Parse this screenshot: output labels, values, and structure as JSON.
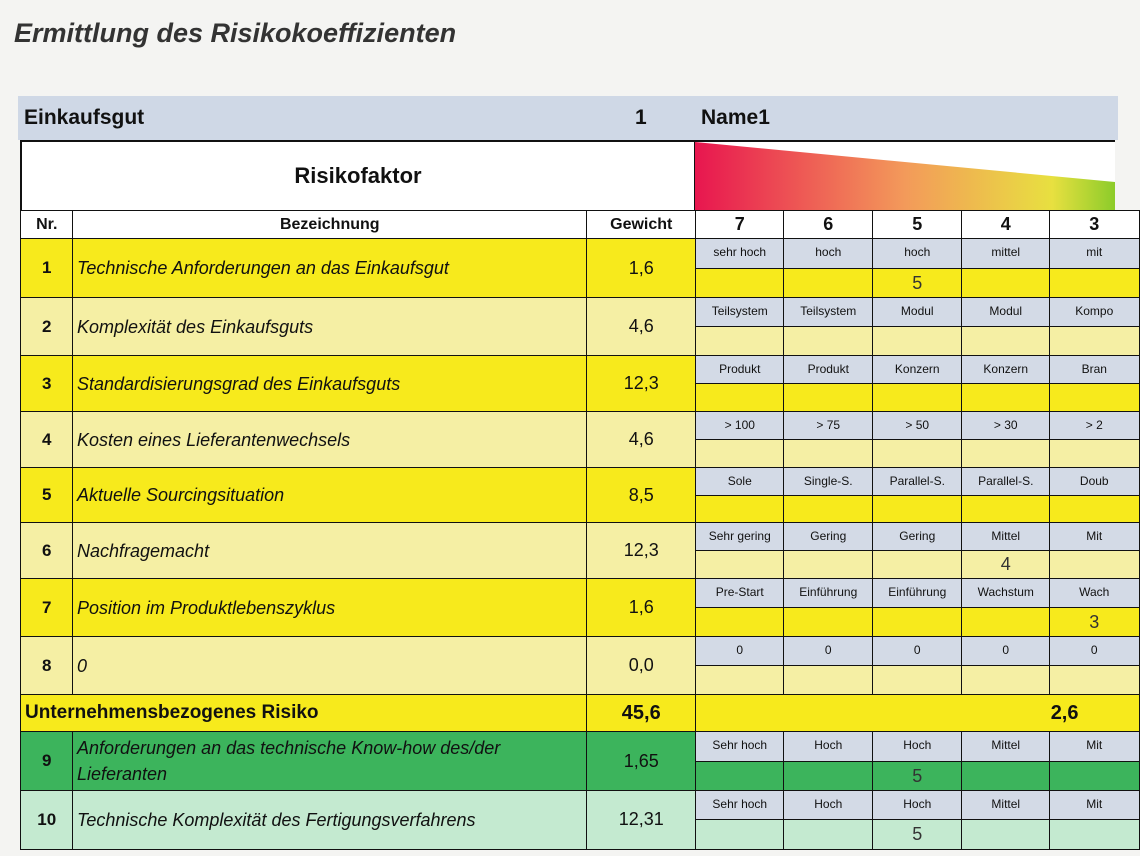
{
  "title": "Ermittlung des Risikokoeffizienten",
  "header": {
    "label": "Einkaufsgut",
    "number": "1",
    "name": "Name1"
  },
  "section_title": "Risikofaktor",
  "columns": {
    "nr": "Nr.",
    "bezeichnung": "Bezeichnung",
    "gewicht": "Gewicht",
    "scores": [
      "7",
      "6",
      "5",
      "4",
      "3"
    ]
  },
  "colors": {
    "bright_yellow": "#f7ea1c",
    "pale_yellow": "#f5efa4",
    "green": "#3cb45c",
    "pale_green": "#c4ead0",
    "label_bg": "#d3dae6"
  },
  "rows": [
    {
      "nr": "1",
      "name": "Technische Anforderungen an das Einkaufsgut",
      "weight": "1,6",
      "labels": [
        "sehr hoch",
        "hoch",
        "hoch",
        "mittel",
        "mit"
      ],
      "values": [
        "",
        "",
        "5",
        "",
        ""
      ],
      "style": "bright"
    },
    {
      "nr": "2",
      "name": "Komplexität des Einkaufsguts",
      "weight": "4,6",
      "labels": [
        "Teilsystem",
        "Teilsystem",
        "Modul",
        "Modul",
        "Kompo"
      ],
      "values": [
        "",
        "",
        "",
        "",
        ""
      ],
      "style": "pale"
    },
    {
      "nr": "3",
      "name": "Standardisierungsgrad des Einkaufsguts",
      "weight": "12,3",
      "labels": [
        "Produkt",
        "Produkt",
        "Konzern",
        "Konzern",
        "Bran"
      ],
      "values": [
        "",
        "",
        "",
        "",
        ""
      ],
      "style": "bright"
    },
    {
      "nr": "4",
      "name": "Kosten eines Lieferantenwechsels",
      "weight": "4,6",
      "labels": [
        "> 100",
        "> 75",
        "> 50",
        "> 30",
        "> 2"
      ],
      "values": [
        "",
        "",
        "",
        "",
        ""
      ],
      "style": "pale"
    },
    {
      "nr": "5",
      "name": "Aktuelle Sourcingsituation",
      "weight": "8,5",
      "labels": [
        "Sole",
        "Single-S.",
        "Parallel-S.",
        "Parallel-S.",
        "Doub"
      ],
      "values": [
        "",
        "",
        "",
        "",
        ""
      ],
      "style": "bright"
    },
    {
      "nr": "6",
      "name": "Nachfragemacht",
      "weight": "12,3",
      "labels": [
        "Sehr gering",
        "Gering",
        "Gering",
        "Mittel",
        "Mit"
      ],
      "values": [
        "",
        "",
        "",
        "4",
        ""
      ],
      "style": "pale"
    },
    {
      "nr": "7",
      "name": "Position im Produktlebenszyklus",
      "weight": "1,6",
      "labels": [
        "Pre-Start",
        "Einführung",
        "Einführung",
        "Wachstum",
        "Wach"
      ],
      "values": [
        "",
        "",
        "",
        "",
        "3"
      ],
      "style": "bright"
    },
    {
      "nr": "8",
      "name": "0",
      "weight": "0,0",
      "labels": [
        "0",
        "0",
        "0",
        "0",
        "0"
      ],
      "values": [
        "",
        "",
        "",
        "",
        ""
      ],
      "style": "pale"
    }
  ],
  "summary": {
    "label": "Unternehmensbezogenes Risiko",
    "weight": "45,6",
    "score": "2,6"
  },
  "rows2": [
    {
      "nr": "9",
      "name": "Anforderungen an das technische Know-how des/der Lieferanten",
      "weight": "1,65",
      "labels": [
        "Sehr hoch",
        "Hoch",
        "Hoch",
        "Mittel",
        "Mit"
      ],
      "values": [
        "",
        "",
        "5",
        "",
        ""
      ],
      "style": "green"
    },
    {
      "nr": "10",
      "name": "Technische Komplexität des Fertigungsverfahrens",
      "weight": "12,31",
      "labels": [
        "Sehr hoch",
        "Hoch",
        "Hoch",
        "Mittel",
        "Mit"
      ],
      "values": [
        "",
        "",
        "5",
        "",
        ""
      ],
      "style": "palegreen"
    }
  ]
}
